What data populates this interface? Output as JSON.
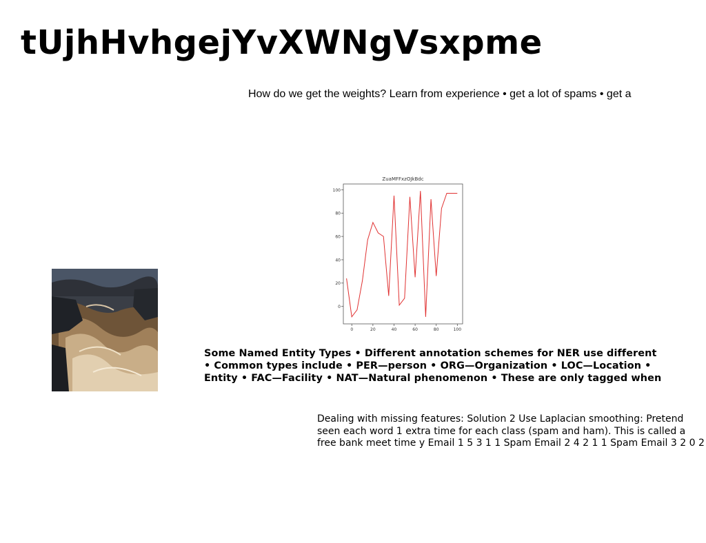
{
  "title": "tUjhHvhgejYvXWNgVsxpme",
  "weights_text": "How do we get the weights? Learn from experience • get a lot of spams • get a",
  "ner_lines": [
    "Some Named Entity Types • Different annotation schemes for NER use different",
    "• Common types include • PER—person • ORG—Organization • LOC—Location •",
    "Entity • FAC—Facility • NAT—Natural phenomenon • These are only tagged when"
  ],
  "smoothing_lines": [
    "Dealing with missing features: Solution 2 Use Laplacian smoothing: Pretend",
    "seen each word 1 extra time for each class (spam and ham). This is called a",
    "free bank meet time y Email 1 5 3 1 1 Spam Email 2 4 2 1 1 Spam Email 3 2 0 2"
  ],
  "photo": {
    "description_icon": "river-rocks-photo",
    "colors": {
      "dark": "#2a2a2c",
      "water": "#8a6a4a",
      "foam": "#d8c4a6",
      "rock": "#3d3f45",
      "sky": "#4a5566"
    }
  },
  "chart_data": {
    "type": "line",
    "title": "ZuaMFFxzOJkBdc",
    "xlabel": "",
    "ylabel": "",
    "xlim": [
      -8,
      105
    ],
    "ylim": [
      -15,
      105
    ],
    "xticks": [
      0,
      20,
      40,
      60,
      80,
      100
    ],
    "yticks": [
      0,
      20,
      40,
      60,
      80,
      100
    ],
    "series": [
      {
        "color": "#e03030",
        "x": [
          -5,
          0,
          5,
          10,
          15,
          20,
          25,
          30,
          35,
          40,
          45,
          50,
          55,
          60,
          65,
          70,
          75,
          80,
          85,
          90,
          95,
          100
        ],
        "y": [
          24,
          -9,
          -3,
          22,
          57,
          72,
          63,
          60,
          9,
          95,
          1,
          7,
          94,
          25,
          99,
          -9,
          92,
          26,
          84,
          97,
          97,
          97
        ]
      }
    ]
  }
}
